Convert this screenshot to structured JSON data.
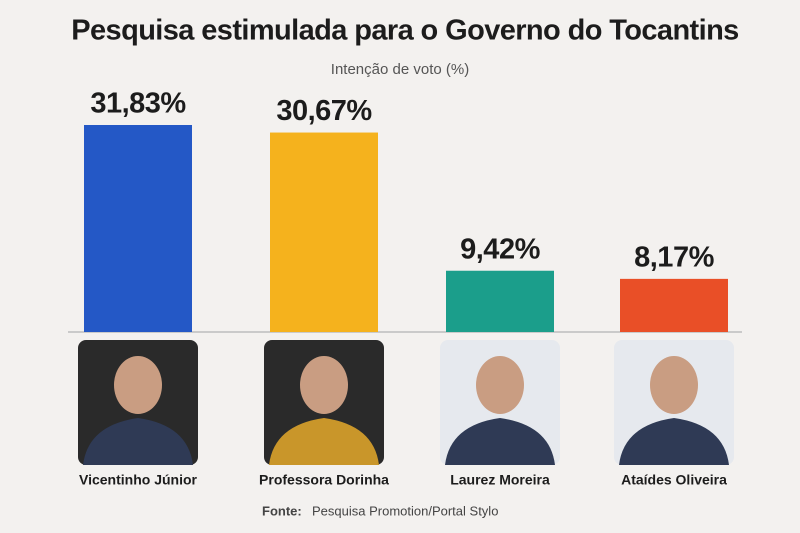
{
  "chart_data": {
    "type": "bar",
    "title": "Pesquisa estimulada para o Governo do Tocantins",
    "subtitle": "Intenção de voto (%)",
    "categories": [
      "Vicentinho Júnior",
      "Professora Dorinha",
      "Laurez Moreira",
      "Ataídes Oliveira"
    ],
    "values": [
      31.83,
      30.67,
      9.42,
      8.17
    ],
    "value_labels": [
      "31,83%",
      "30,67%",
      "9,42%",
      "8,17%"
    ],
    "colors": [
      "#2458c6",
      "#f5b21d",
      "#1b9e8b",
      "#e94f27"
    ],
    "source": {
      "label": "Fonte:",
      "text": "Pesquisa Promotion/Portal Stylo"
    }
  }
}
